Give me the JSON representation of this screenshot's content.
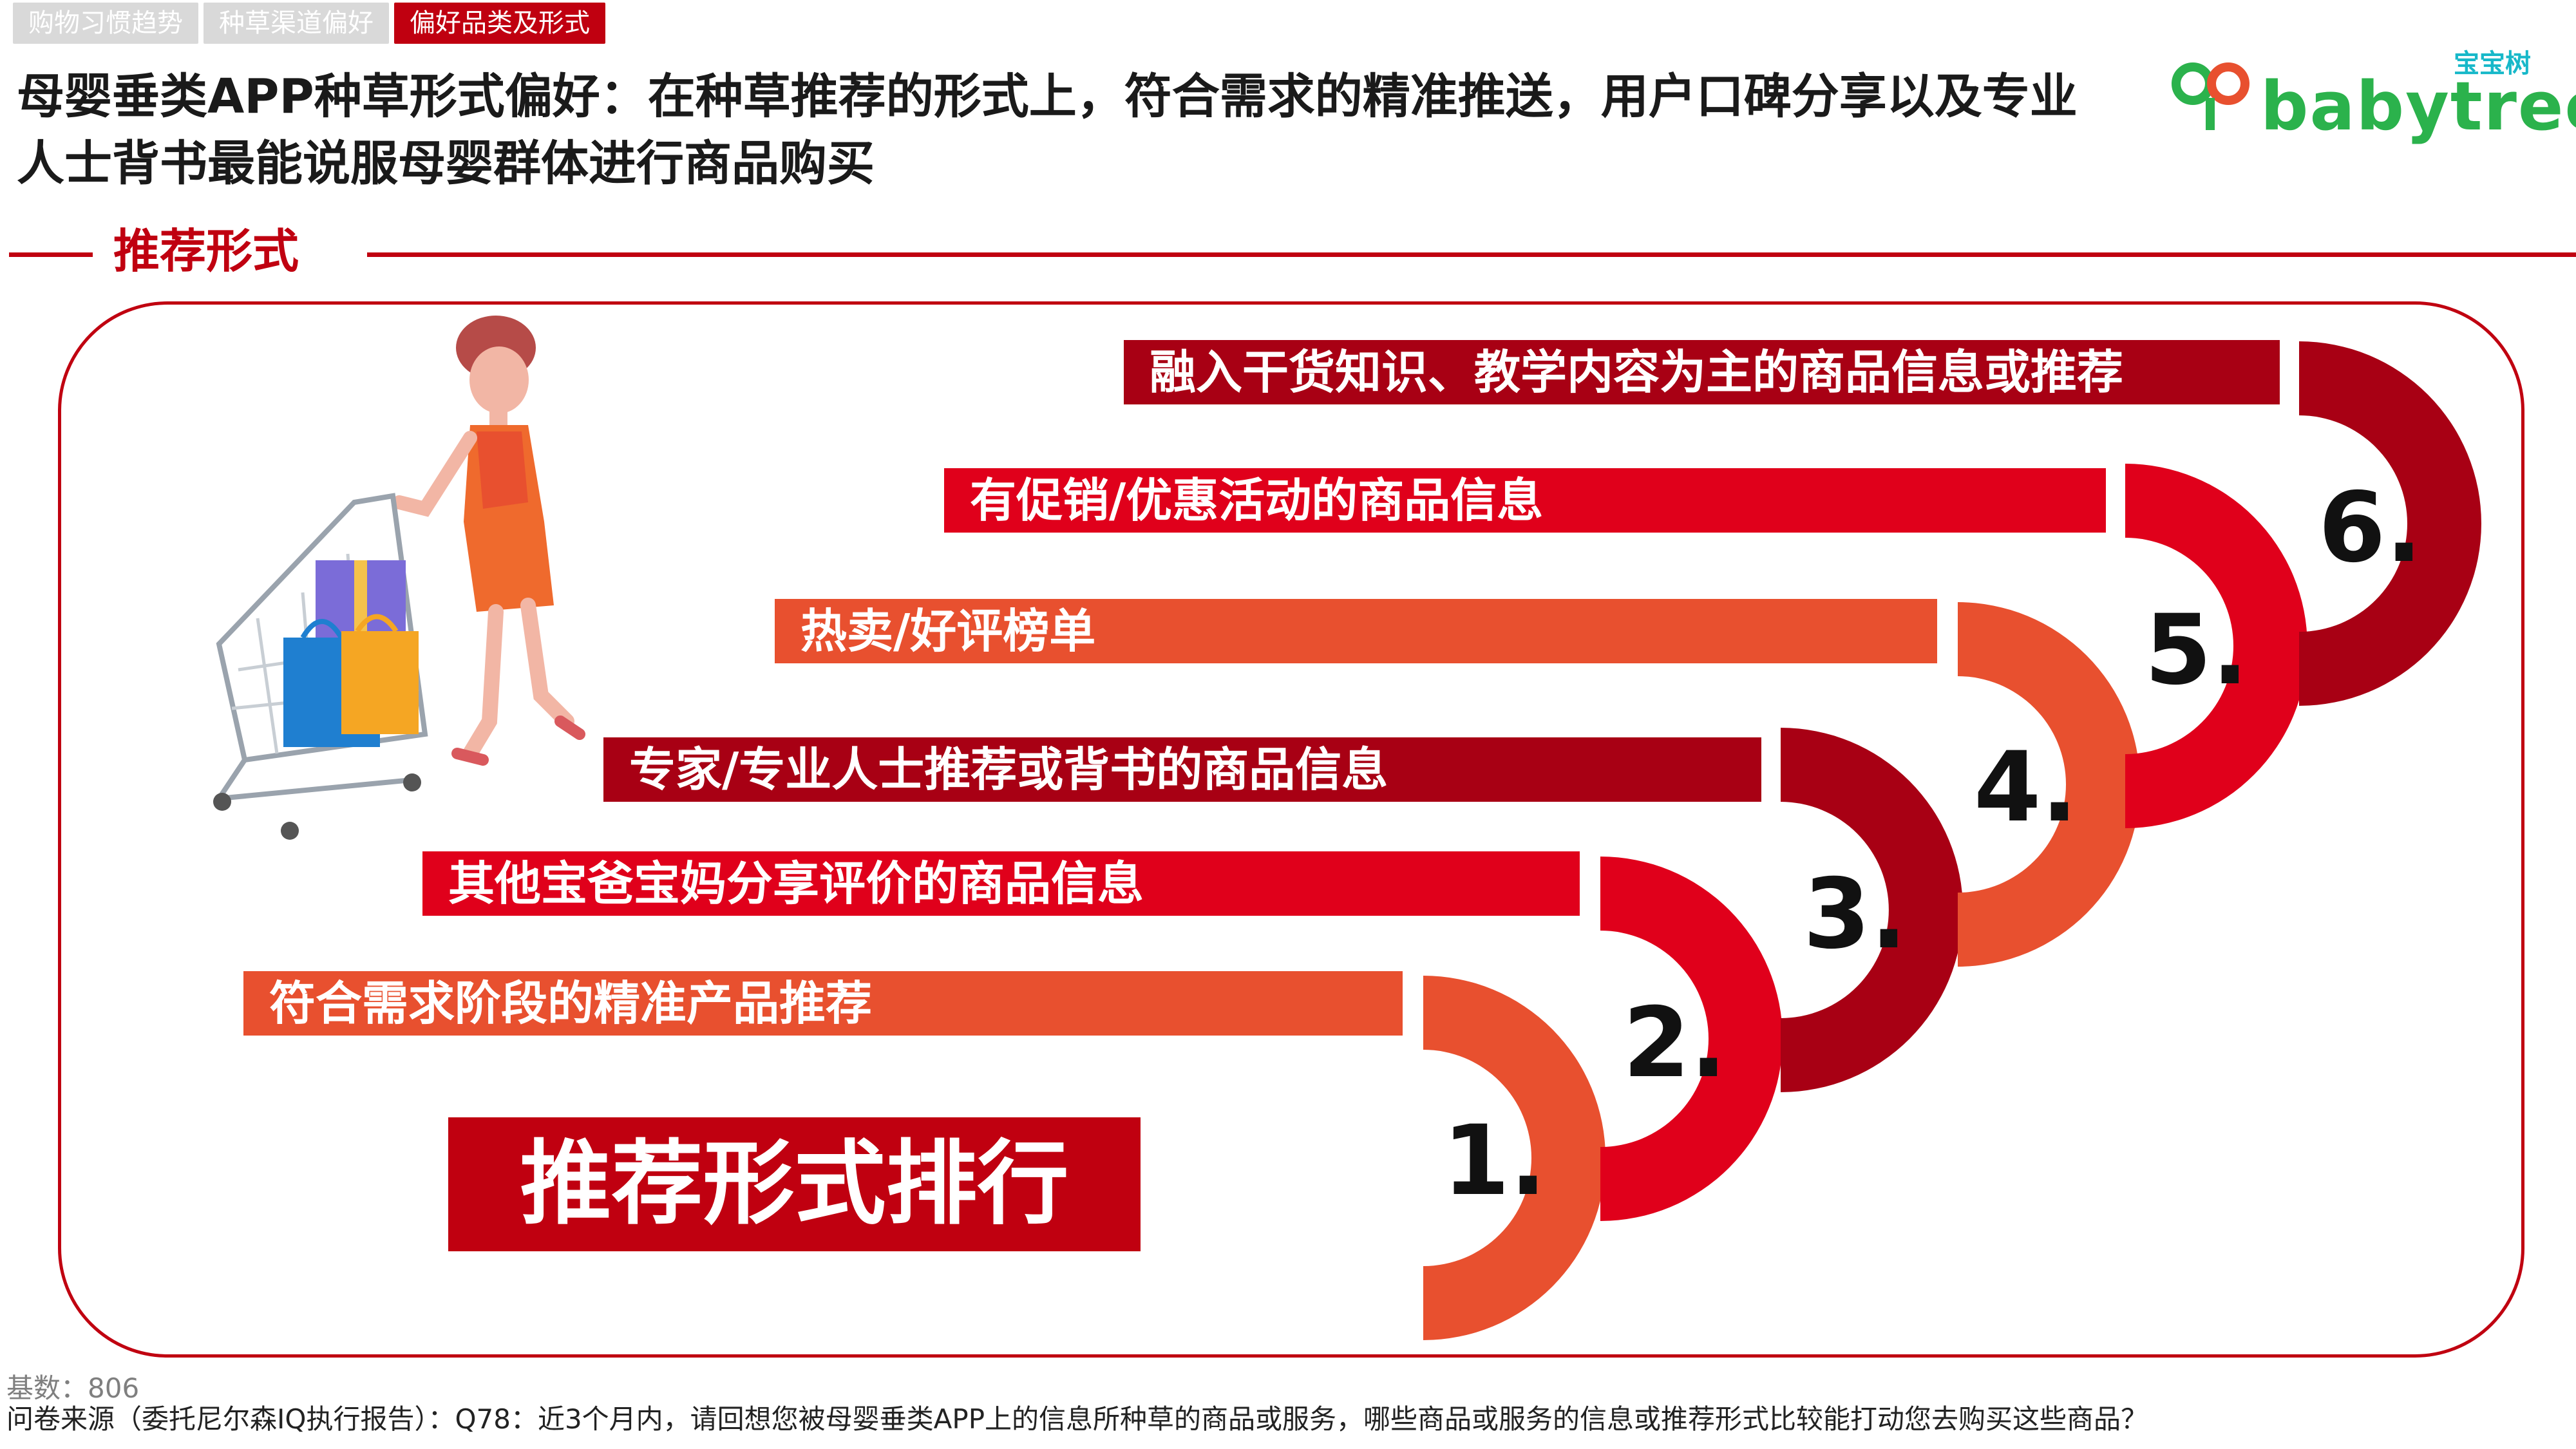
{
  "tabs": [
    "购物习惯趋势",
    "种草渠道偏好",
    "偏好品类及形式"
  ],
  "active_tab": "偏好品类及形式",
  "headline": "母婴垂类APP种草形式偏好：在种草推荐的形式上，符合需求的精准推送，用户口碑分享以及专业人士背书最能说服母婴群体进行商品购买",
  "logo": {
    "brand_cn": "宝宝树",
    "brand_en": "babytree"
  },
  "section_title": "推荐形式",
  "ranking": [
    {
      "rank": "1.",
      "label": "符合需求阶段的精准产品推荐",
      "color": "#e8502f"
    },
    {
      "rank": "2.",
      "label": "其他宝爸宝妈分享评价的商品信息",
      "color": "#e0001b"
    },
    {
      "rank": "3.",
      "label": "专家/专业人士推荐或背书的商品信息",
      "color": "#a80014"
    },
    {
      "rank": "4.",
      "label": "热卖/好评榜单",
      "color": "#e8502f"
    },
    {
      "rank": "5.",
      "label": "有促销/优惠活动的商品信息",
      "color": "#e0001b"
    },
    {
      "rank": "6.",
      "label": "融入干货知识、教学内容为主的商品信息或推荐",
      "color": "#a80014"
    }
  ],
  "rank_title": "推荐形式排行",
  "footer": {
    "base": "基数：806",
    "source": "问卷来源（委托尼尔森IQ执行报告）：Q78：近3个月内，请回想您被母婴垂类APP上的信息所种草的商品或服务，哪些商品或服务的信息或推荐形式比较能打动您去购买这些商品？"
  },
  "colors": {
    "brand_red": "#c00010",
    "orange": "#e8502f",
    "red": "#e0001b",
    "dark_red": "#a80014"
  }
}
